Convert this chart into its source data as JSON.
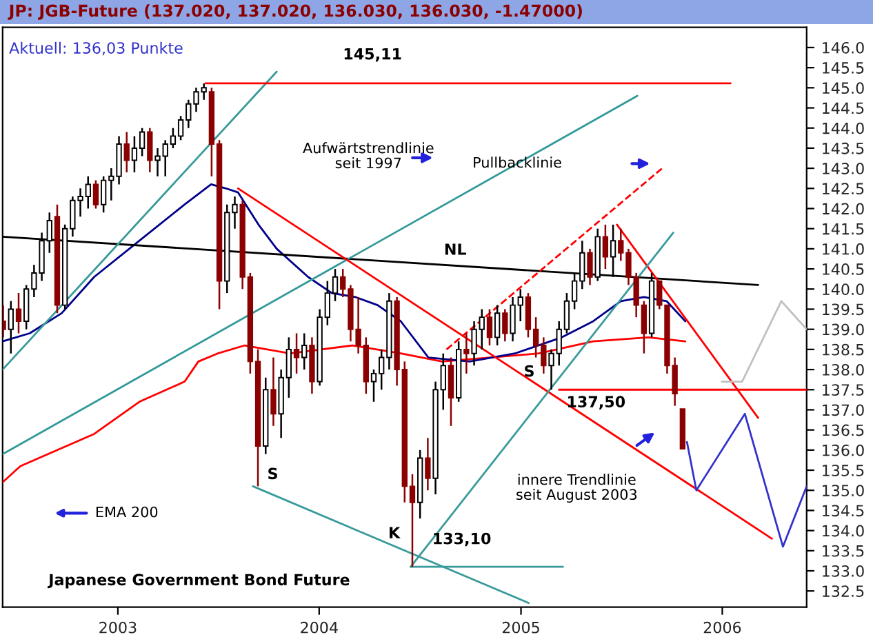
{
  "chart_data": {
    "type": "candlestick",
    "title": "JP: JGB-Future (137.020, 137.020, 136.030, 136.030, -1.47000)",
    "subtitle": "Aktuell: 136,03 Punkte",
    "x": [
      "2002-06-07",
      "2002-06-21",
      "2002-07-05",
      "2002-07-19",
      "2002-08-02",
      "2002-08-16",
      "2002-08-30",
      "2002-09-13",
      "2002-09-27",
      "2002-10-11",
      "2002-10-25",
      "2002-11-08",
      "2002-11-22",
      "2002-12-06",
      "2002-12-20",
      "2003-01-03",
      "2003-01-17",
      "2003-01-31",
      "2003-02-14",
      "2003-02-28",
      "2003-03-14",
      "2003-03-28",
      "2003-04-11",
      "2003-04-25",
      "2003-05-09",
      "2003-05-23",
      "2003-06-06",
      "2003-06-20",
      "2003-07-04",
      "2003-07-18",
      "2003-08-01",
      "2003-08-15",
      "2003-08-29",
      "2003-09-12",
      "2003-09-26",
      "2003-10-10",
      "2003-10-24",
      "2003-11-07",
      "2003-11-21",
      "2003-12-05",
      "2003-12-19",
      "2004-01-02",
      "2004-01-16",
      "2004-01-30",
      "2004-02-13",
      "2004-02-27",
      "2004-03-12",
      "2004-03-26",
      "2004-04-09",
      "2004-04-23",
      "2004-05-07",
      "2004-05-21",
      "2004-06-04",
      "2004-06-18",
      "2004-07-02",
      "2004-07-16",
      "2004-07-30",
      "2004-08-13",
      "2004-08-27",
      "2004-09-10",
      "2004-09-24",
      "2004-10-08",
      "2004-10-22",
      "2004-11-05",
      "2004-11-19",
      "2004-12-03",
      "2004-12-17",
      "2004-12-31",
      "2005-01-14",
      "2005-01-28",
      "2005-02-11",
      "2005-02-25",
      "2005-03-11",
      "2005-03-25",
      "2005-04-08",
      "2005-04-22",
      "2005-05-06",
      "2005-05-20",
      "2005-06-03",
      "2005-06-17",
      "2005-07-01",
      "2005-07-15",
      "2005-07-29",
      "2005-08-12",
      "2005-08-26",
      "2005-09-09",
      "2005-09-23",
      "2005-10-07",
      "2005-10-21"
    ],
    "ohlc": [
      [
        139.2,
        139.6,
        138.8,
        139.0
      ],
      [
        139.0,
        139.7,
        138.4,
        139.5
      ],
      [
        139.5,
        139.9,
        138.9,
        139.2
      ],
      [
        139.2,
        140.1,
        139.0,
        140.0
      ],
      [
        140.0,
        140.6,
        139.8,
        140.4
      ],
      [
        140.4,
        141.4,
        140.2,
        141.2
      ],
      [
        141.2,
        141.9,
        140.9,
        141.7
      ],
      [
        141.8,
        142.1,
        139.4,
        139.6
      ],
      [
        139.6,
        141.6,
        139.5,
        141.5
      ],
      [
        141.5,
        142.3,
        141.3,
        142.2
      ],
      [
        142.2,
        142.5,
        141.8,
        142.3
      ],
      [
        142.3,
        142.8,
        142.0,
        142.6
      ],
      [
        142.6,
        142.7,
        142.0,
        142.1
      ],
      [
        142.1,
        142.8,
        141.9,
        142.7
      ],
      [
        142.7,
        143.0,
        142.2,
        142.8
      ],
      [
        142.8,
        143.8,
        142.6,
        143.6
      ],
      [
        143.6,
        143.9,
        142.9,
        143.2
      ],
      [
        143.2,
        143.8,
        142.9,
        143.5
      ],
      [
        143.5,
        144.0,
        143.3,
        143.9
      ],
      [
        143.9,
        144.0,
        142.9,
        143.2
      ],
      [
        143.2,
        143.5,
        142.8,
        143.3
      ],
      [
        143.3,
        143.7,
        142.8,
        143.6
      ],
      [
        143.6,
        144.0,
        143.5,
        143.8
      ],
      [
        143.8,
        144.3,
        143.7,
        144.2
      ],
      [
        144.2,
        144.7,
        144.0,
        144.6
      ],
      [
        144.6,
        145.0,
        144.4,
        144.9
      ],
      [
        144.9,
        145.11,
        144.7,
        145.0
      ],
      [
        144.9,
        145.0,
        142.8,
        143.6
      ],
      [
        143.6,
        143.7,
        139.5,
        140.2
      ],
      [
        140.2,
        142.1,
        139.9,
        141.9
      ],
      [
        141.9,
        142.3,
        141.5,
        142.1
      ],
      [
        142.1,
        142.2,
        140.0,
        140.3
      ],
      [
        140.3,
        140.4,
        137.9,
        138.2
      ],
      [
        138.2,
        138.5,
        135.1,
        136.1
      ],
      [
        136.1,
        137.8,
        135.9,
        137.5
      ],
      [
        137.5,
        138.3,
        136.6,
        136.9
      ],
      [
        136.9,
        138.0,
        136.3,
        137.8
      ],
      [
        137.8,
        138.8,
        137.3,
        138.5
      ],
      [
        138.5,
        138.9,
        137.9,
        138.3
      ],
      [
        138.3,
        138.9,
        138.0,
        138.6
      ],
      [
        138.6,
        138.8,
        137.4,
        137.7
      ],
      [
        137.7,
        139.5,
        137.6,
        139.3
      ],
      [
        139.3,
        140.2,
        139.1,
        139.9
      ],
      [
        139.9,
        140.5,
        139.7,
        140.3
      ],
      [
        140.3,
        140.5,
        139.8,
        140.0
      ],
      [
        140.0,
        140.1,
        138.7,
        139.0
      ],
      [
        139.0,
        139.8,
        138.4,
        138.6
      ],
      [
        138.6,
        138.8,
        137.4,
        137.7
      ],
      [
        137.7,
        138.0,
        137.2,
        137.9
      ],
      [
        137.9,
        138.5,
        137.5,
        138.3
      ],
      [
        138.3,
        139.9,
        138.0,
        139.7
      ],
      [
        139.7,
        139.8,
        137.6,
        138.0
      ],
      [
        138.0,
        138.2,
        134.7,
        135.1
      ],
      [
        135.1,
        135.4,
        133.1,
        134.7
      ],
      [
        134.7,
        136.0,
        134.3,
        135.8
      ],
      [
        135.8,
        136.3,
        135.0,
        135.3
      ],
      [
        135.3,
        137.7,
        134.9,
        137.5
      ],
      [
        137.5,
        138.4,
        137.0,
        138.1
      ],
      [
        138.1,
        138.3,
        136.6,
        137.3
      ],
      [
        137.3,
        138.7,
        137.2,
        138.5
      ],
      [
        138.5,
        138.9,
        137.9,
        138.4
      ],
      [
        138.4,
        139.2,
        138.1,
        139.0
      ],
      [
        139.0,
        139.5,
        138.5,
        139.3
      ],
      [
        139.3,
        139.5,
        138.6,
        138.8
      ],
      [
        138.8,
        139.6,
        138.6,
        139.4
      ],
      [
        139.4,
        139.5,
        138.7,
        138.9
      ],
      [
        138.9,
        139.8,
        138.7,
        139.6
      ],
      [
        139.6,
        140.0,
        139.2,
        139.8
      ],
      [
        139.8,
        139.9,
        138.8,
        139.0
      ],
      [
        139.0,
        139.3,
        138.3,
        138.6
      ],
      [
        138.6,
        138.8,
        137.9,
        138.1
      ],
      [
        138.1,
        138.5,
        137.5,
        138.4
      ],
      [
        138.4,
        139.2,
        138.1,
        139.0
      ],
      [
        139.0,
        139.9,
        138.9,
        139.7
      ],
      [
        139.7,
        140.4,
        139.5,
        140.2
      ],
      [
        140.2,
        141.2,
        140.0,
        140.9
      ],
      [
        140.9,
        141.0,
        140.1,
        140.3
      ],
      [
        140.3,
        141.5,
        140.2,
        141.3
      ],
      [
        141.3,
        141.6,
        140.5,
        140.8
      ],
      [
        140.8,
        141.6,
        140.3,
        141.2
      ],
      [
        141.2,
        141.5,
        140.7,
        140.9
      ],
      [
        140.9,
        141.0,
        140.1,
        140.3
      ],
      [
        140.3,
        140.4,
        139.3,
        139.6
      ],
      [
        139.6,
        139.7,
        138.4,
        138.9
      ],
      [
        138.9,
        140.4,
        138.8,
        140.2
      ],
      [
        140.2,
        140.2,
        139.5,
        139.6
      ],
      [
        139.6,
        139.6,
        137.9,
        138.1
      ],
      [
        138.1,
        138.3,
        137.1,
        137.4
      ],
      [
        137.02,
        137.02,
        136.03,
        136.03
      ]
    ],
    "series": [
      {
        "type": "line",
        "name": "EMA 200",
        "color": "#ff0000",
        "x": [
          "2002-06-06",
          "2002-07-08",
          "2002-08-27",
          "2002-11-19",
          "2003-02-09",
          "2003-05-02",
          "2003-05-27",
          "2003-07-01",
          "2003-08-19",
          "2003-11-09",
          "2004-03-02",
          "2004-05-28",
          "2004-08-11",
          "2004-11-06",
          "2005-02-02",
          "2005-05-12",
          "2005-08-20",
          "2005-10-26"
        ],
        "values": [
          135.2,
          135.6,
          135.9,
          136.4,
          137.2,
          137.7,
          138.2,
          138.4,
          138.6,
          138.4,
          138.6,
          138.4,
          138.2,
          138.3,
          138.4,
          138.7,
          138.8,
          138.7
        ]
      },
      {
        "type": "line",
        "color": "#00008b",
        "x": [
          "2002-06-06",
          "2002-07-25",
          "2002-09-21",
          "2002-11-19",
          "2003-02-09",
          "2003-05-02",
          "2003-06-19",
          "2003-07-16",
          "2003-08-07",
          "2003-09-13",
          "2003-10-16",
          "2003-12-12",
          "2004-01-24",
          "2004-03-07",
          "2004-04-16",
          "2004-05-28",
          "2004-07-17",
          "2004-09-30",
          "2004-12-21",
          "2005-03-16",
          "2005-05-12",
          "2005-07-01",
          "2005-08-12",
          "2005-09-22",
          "2005-10-26"
        ],
        "values": [
          138.7,
          138.9,
          139.4,
          140.3,
          141.2,
          142.1,
          142.6,
          142.5,
          142.4,
          141.6,
          141.0,
          140.3,
          139.9,
          139.8,
          139.6,
          139.2,
          138.3,
          138.2,
          138.4,
          138.8,
          139.2,
          139.7,
          139.8,
          139.7,
          139.2
        ]
      },
      {
        "type": "line",
        "color": "#000000",
        "x": [
          "2002-06-06",
          "2006-03-07"
        ],
        "values": [
          141.3,
          140.1
        ]
      },
      {
        "type": "line",
        "color": "#339999",
        "x": [
          "2002-06-06",
          "2005-07-31"
        ],
        "values": [
          135.9,
          144.8
        ]
      },
      {
        "type": "line",
        "color": "#3a9a9a",
        "x": [
          "2002-06-06",
          "2003-10-16"
        ],
        "values": [
          138.0,
          145.4
        ]
      },
      {
        "type": "line",
        "color": "#ff0000",
        "x": [
          "2003-06-09",
          "2006-01-16"
        ],
        "values": [
          145.11,
          145.11
        ]
      },
      {
        "type": "line",
        "color": "#ff0000",
        "x": [
          "2003-08-07",
          "2006-04-01"
        ],
        "values": [
          142.5,
          133.8
        ]
      },
      {
        "type": "line",
        "color": "#ff0000",
        "line_style": "dashed",
        "x": [
          "2004-08-19",
          "2005-09-14"
        ],
        "values": [
          138.5,
          143.0
        ]
      },
      {
        "type": "line",
        "color": "#ff0000",
        "x": [
          "2005-06-24",
          "2006-03-07"
        ],
        "values": [
          141.6,
          136.8
        ]
      },
      {
        "type": "line",
        "color": "#ff0000",
        "x": [
          "2005-03-11",
          "2006-06-03"
        ],
        "values": [
          137.5,
          137.5
        ]
      },
      {
        "type": "line",
        "color": "#3a9a9a",
        "x": [
          "2004-06-15",
          "2005-10-04"
        ],
        "values": [
          133.1,
          141.4
        ]
      },
      {
        "type": "line",
        "color": "#3a9a9a",
        "x": [
          "2004-06-15",
          "2005-03-18"
        ],
        "values": [
          133.1,
          133.1
        ]
      },
      {
        "type": "line",
        "color": "#3a9a9a",
        "x": [
          "2003-09-03",
          "2005-01-15"
        ],
        "values": [
          135.1,
          132.2
        ]
      },
      {
        "type": "line",
        "color": "#c0c0c0",
        "x": [
          "2005-12-31",
          "2006-02-06",
          "2006-04-18",
          "2006-06-03"
        ],
        "values": [
          137.7,
          137.7,
          139.7,
          139.0
        ]
      },
      {
        "type": "line",
        "color": "#3333cc",
        "x": [
          "2005-10-29",
          "2005-11-15",
          "2006-02-11",
          "2006-04-21",
          "2006-06-03"
        ],
        "values": [
          136.2,
          135.0,
          136.9,
          133.6,
          135.1
        ]
      }
    ],
    "annotations": [
      "145,11",
      "137,50",
      "133,10",
      "S",
      "K",
      "S",
      "NL",
      "Aufwärtstrendlinie\nseit 1997",
      "Pullbacklinie",
      "innere Trendlinie\nseit August 2003",
      "Japanese Government Bond Future"
    ],
    "xlim": [
      "2002-06-06",
      "2006-06-03"
    ],
    "xticks": [
      {
        "value": "2003-01-01",
        "label": "2003"
      },
      {
        "value": "2004-01-01",
        "label": "2004"
      },
      {
        "value": "2005-01-01",
        "label": "2005"
      },
      {
        "value": "2006-01-01",
        "label": "2006"
      }
    ],
    "ylim": [
      132.1,
      146.5
    ],
    "yticks": [
      {
        "value": 132.5,
        "label": "132.5"
      },
      {
        "value": 133,
        "label": "133.0"
      },
      {
        "value": 133.5,
        "label": "133.5"
      },
      {
        "value": 134,
        "label": "134.0"
      },
      {
        "value": 134.5,
        "label": "134.5"
      },
      {
        "value": 135,
        "label": "135.0"
      },
      {
        "value": 135.5,
        "label": "135.5"
      },
      {
        "value": 136,
        "label": "136.0"
      },
      {
        "value": 136.5,
        "label": "136.5"
      },
      {
        "value": 137,
        "label": "137.0"
      },
      {
        "value": 137.5,
        "label": "137.5"
      },
      {
        "value": 138,
        "label": "138.0"
      },
      {
        "value": 138.5,
        "label": "138.5"
      },
      {
        "value": 139,
        "label": "139.0"
      },
      {
        "value": 139.5,
        "label": "139.5"
      },
      {
        "value": 140,
        "label": "140.0"
      },
      {
        "value": 140.5,
        "label": "140.5"
      },
      {
        "value": 141,
        "label": "141.0"
      },
      {
        "value": 141.5,
        "label": "141.5"
      },
      {
        "value": 142,
        "label": "142.0"
      },
      {
        "value": 142.5,
        "label": "142.5"
      },
      {
        "value": 143,
        "label": "143.0"
      },
      {
        "value": 143.5,
        "label": "143.5"
      },
      {
        "value": 144,
        "label": "144.0"
      },
      {
        "value": 144.5,
        "label": "144.5"
      },
      {
        "value": 145,
        "label": "145.0"
      },
      {
        "value": 145.5,
        "label": "145.5"
      },
      {
        "value": 146,
        "label": "146.0"
      }
    ]
  }
}
